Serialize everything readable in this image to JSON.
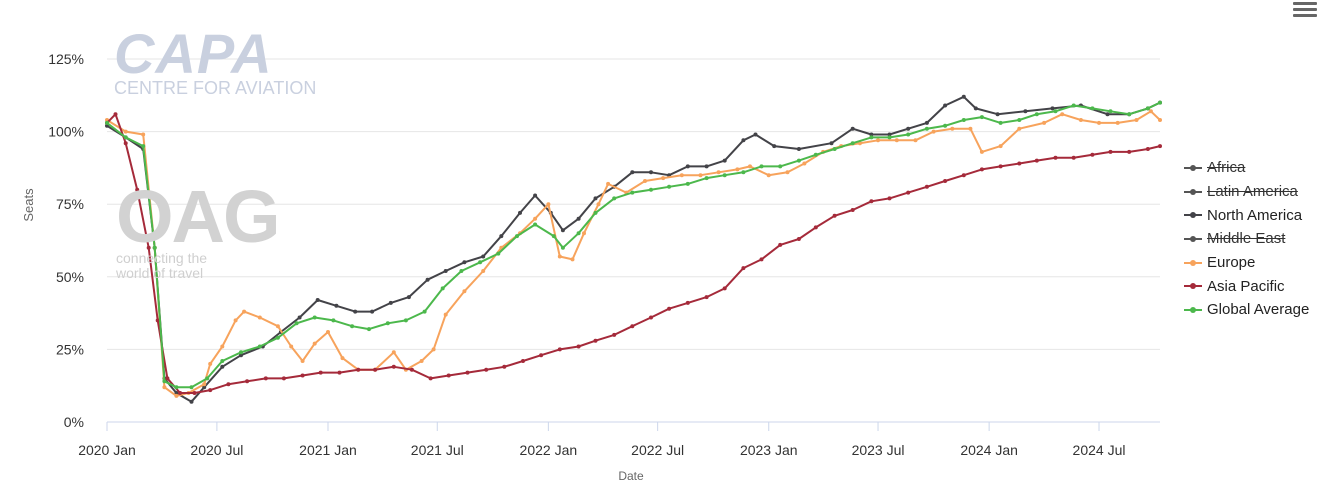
{
  "watermarks": {
    "capa_big": "CAPA",
    "capa_small": "CENTRE FOR AVIATION",
    "oag_big": "OAG",
    "oag_tag1": "connecting the",
    "oag_tag2": "world of travel"
  },
  "menu_icon": "hamburger-menu-icon",
  "chart_data": {
    "type": "line",
    "xlabel": "Date",
    "ylabel": "Seats",
    "x_range": [
      "2020-01-01",
      "2024-10-10"
    ],
    "ylim": [
      0,
      125
    ],
    "y_ticks": [
      0,
      25,
      50,
      75,
      100,
      125
    ],
    "y_tick_labels": [
      "0%",
      "25%",
      "50%",
      "75%",
      "100%",
      "125%"
    ],
    "x_tick_labels": [
      "2020 Jan",
      "2020 Jul",
      "2021 Jan",
      "2021 Jul",
      "2022 Jan",
      "2022 Jul",
      "2023 Jan",
      "2023 Jul",
      "2024 Jan",
      "2024 Jul"
    ],
    "x_tick_dates": [
      "2020-01-01",
      "2020-07-01",
      "2021-01-01",
      "2021-07-01",
      "2022-01-01",
      "2022-07-01",
      "2023-01-01",
      "2023-07-01",
      "2024-01-01",
      "2024-07-01"
    ],
    "grid": "horizontal",
    "legend_position": "right",
    "series": [
      {
        "name": "Africa",
        "color": "#555555",
        "visible": false,
        "points": []
      },
      {
        "name": "Latin America",
        "color": "#555555",
        "visible": false,
        "points": []
      },
      {
        "name": "North America",
        "color": "#434348",
        "visible": true,
        "points": [
          [
            "2020-01-01",
            102
          ],
          [
            "2020-02-01",
            98
          ],
          [
            "2020-03-01",
            94
          ],
          [
            "2020-03-20",
            60
          ],
          [
            "2020-04-05",
            15
          ],
          [
            "2020-04-25",
            10
          ],
          [
            "2020-05-20",
            7
          ],
          [
            "2020-06-10",
            12
          ],
          [
            "2020-07-10",
            19
          ],
          [
            "2020-08-10",
            23
          ],
          [
            "2020-09-15",
            26
          ],
          [
            "2020-10-15",
            31
          ],
          [
            "2020-11-15",
            36
          ],
          [
            "2020-12-15",
            42
          ],
          [
            "2021-01-15",
            40
          ],
          [
            "2021-02-15",
            38
          ],
          [
            "2021-03-15",
            38
          ],
          [
            "2021-04-15",
            41
          ],
          [
            "2021-05-15",
            43
          ],
          [
            "2021-06-15",
            49
          ],
          [
            "2021-07-15",
            52
          ],
          [
            "2021-08-15",
            55
          ],
          [
            "2021-09-15",
            57
          ],
          [
            "2021-10-15",
            64
          ],
          [
            "2021-11-15",
            72
          ],
          [
            "2021-12-10",
            78
          ],
          [
            "2022-01-05",
            72
          ],
          [
            "2022-01-25",
            66
          ],
          [
            "2022-02-20",
            70
          ],
          [
            "2022-03-20",
            77
          ],
          [
            "2022-04-20",
            81
          ],
          [
            "2022-05-20",
            86
          ],
          [
            "2022-06-20",
            86
          ],
          [
            "2022-07-20",
            85
          ],
          [
            "2022-08-20",
            88
          ],
          [
            "2022-09-20",
            88
          ],
          [
            "2022-10-20",
            90
          ],
          [
            "2022-11-20",
            97
          ],
          [
            "2022-12-10",
            99
          ],
          [
            "2023-01-10",
            95
          ],
          [
            "2023-02-20",
            94
          ],
          [
            "2023-04-15",
            96
          ],
          [
            "2023-05-20",
            101
          ],
          [
            "2023-06-20",
            99
          ],
          [
            "2023-07-20",
            99
          ],
          [
            "2023-08-20",
            101
          ],
          [
            "2023-09-20",
            103
          ],
          [
            "2023-10-20",
            109
          ],
          [
            "2023-11-20",
            112
          ],
          [
            "2023-12-10",
            108
          ],
          [
            "2024-01-15",
            106
          ],
          [
            "2024-03-01",
            107
          ],
          [
            "2024-04-15",
            108
          ],
          [
            "2024-06-01",
            109
          ],
          [
            "2024-07-15",
            106
          ],
          [
            "2024-08-20",
            106
          ],
          [
            "2024-09-20",
            108
          ],
          [
            "2024-10-10",
            110
          ]
        ]
      },
      {
        "name": "Middle East",
        "color": "#555555",
        "visible": false,
        "points": []
      },
      {
        "name": "Europe",
        "color": "#f7a35c",
        "visible": true,
        "points": [
          [
            "2020-01-01",
            104
          ],
          [
            "2020-02-01",
            100
          ],
          [
            "2020-03-01",
            99
          ],
          [
            "2020-03-20",
            60
          ],
          [
            "2020-04-05",
            12
          ],
          [
            "2020-04-25",
            9
          ],
          [
            "2020-05-15",
            10
          ],
          [
            "2020-06-10",
            13
          ],
          [
            "2020-06-20",
            20
          ],
          [
            "2020-07-10",
            26
          ],
          [
            "2020-08-01",
            35
          ],
          [
            "2020-08-15",
            38
          ],
          [
            "2020-09-10",
            36
          ],
          [
            "2020-10-10",
            33
          ],
          [
            "2020-11-01",
            26
          ],
          [
            "2020-11-20",
            21
          ],
          [
            "2020-12-10",
            27
          ],
          [
            "2021-01-01",
            31
          ],
          [
            "2021-01-25",
            22
          ],
          [
            "2021-02-20",
            18
          ],
          [
            "2021-03-20",
            18
          ],
          [
            "2021-04-20",
            24
          ],
          [
            "2021-05-10",
            18
          ],
          [
            "2021-06-05",
            21
          ],
          [
            "2021-06-25",
            25
          ],
          [
            "2021-07-15",
            37
          ],
          [
            "2021-08-15",
            45
          ],
          [
            "2021-09-15",
            52
          ],
          [
            "2021-10-15",
            60
          ],
          [
            "2021-11-15",
            65
          ],
          [
            "2021-12-10",
            70
          ],
          [
            "2022-01-01",
            75
          ],
          [
            "2022-01-20",
            57
          ],
          [
            "2022-02-10",
            56
          ],
          [
            "2022-03-01",
            65
          ],
          [
            "2022-03-25",
            75
          ],
          [
            "2022-04-10",
            82
          ],
          [
            "2022-05-10",
            79
          ],
          [
            "2022-06-10",
            83
          ],
          [
            "2022-07-10",
            84
          ],
          [
            "2022-08-10",
            85
          ],
          [
            "2022-09-10",
            85
          ],
          [
            "2022-10-10",
            86
          ],
          [
            "2022-11-10",
            87
          ],
          [
            "2022-12-01",
            88
          ],
          [
            "2023-01-01",
            85
          ],
          [
            "2023-02-01",
            86
          ],
          [
            "2023-03-01",
            89
          ],
          [
            "2023-04-01",
            93
          ],
          [
            "2023-05-01",
            95
          ],
          [
            "2023-06-01",
            96
          ],
          [
            "2023-07-01",
            97
          ],
          [
            "2023-08-01",
            97
          ],
          [
            "2023-09-01",
            97
          ],
          [
            "2023-10-01",
            100
          ],
          [
            "2023-11-01",
            101
          ],
          [
            "2023-12-01",
            101
          ],
          [
            "2023-12-20",
            93
          ],
          [
            "2024-01-20",
            95
          ],
          [
            "2024-02-20",
            101
          ],
          [
            "2024-04-01",
            103
          ],
          [
            "2024-05-01",
            106
          ],
          [
            "2024-06-01",
            104
          ],
          [
            "2024-07-01",
            103
          ],
          [
            "2024-08-01",
            103
          ],
          [
            "2024-09-01",
            104
          ],
          [
            "2024-09-25",
            107
          ],
          [
            "2024-10-10",
            104
          ]
        ]
      },
      {
        "name": "Asia Pacific",
        "color": "#a52a3a",
        "visible": true,
        "points": [
          [
            "2020-01-01",
            103
          ],
          [
            "2020-01-15",
            106
          ],
          [
            "2020-02-01",
            96
          ],
          [
            "2020-02-20",
            80
          ],
          [
            "2020-03-10",
            60
          ],
          [
            "2020-03-25",
            35
          ],
          [
            "2020-04-10",
            15
          ],
          [
            "2020-05-01",
            10
          ],
          [
            "2020-05-25",
            10
          ],
          [
            "2020-06-20",
            11
          ],
          [
            "2020-07-20",
            13
          ],
          [
            "2020-08-20",
            14
          ],
          [
            "2020-09-20",
            15
          ],
          [
            "2020-10-20",
            15
          ],
          [
            "2020-11-20",
            16
          ],
          [
            "2020-12-20",
            17
          ],
          [
            "2021-01-20",
            17
          ],
          [
            "2021-02-20",
            18
          ],
          [
            "2021-03-20",
            18
          ],
          [
            "2021-04-20",
            19
          ],
          [
            "2021-05-20",
            18
          ],
          [
            "2021-06-20",
            15
          ],
          [
            "2021-07-20",
            16
          ],
          [
            "2021-08-20",
            17
          ],
          [
            "2021-09-20",
            18
          ],
          [
            "2021-10-20",
            19
          ],
          [
            "2021-11-20",
            21
          ],
          [
            "2021-12-20",
            23
          ],
          [
            "2022-01-20",
            25
          ],
          [
            "2022-02-20",
            26
          ],
          [
            "2022-03-20",
            28
          ],
          [
            "2022-04-20",
            30
          ],
          [
            "2022-05-20",
            33
          ],
          [
            "2022-06-20",
            36
          ],
          [
            "2022-07-20",
            39
          ],
          [
            "2022-08-20",
            41
          ],
          [
            "2022-09-20",
            43
          ],
          [
            "2022-10-20",
            46
          ],
          [
            "2022-11-20",
            53
          ],
          [
            "2022-12-20",
            56
          ],
          [
            "2023-01-20",
            61
          ],
          [
            "2023-02-20",
            63
          ],
          [
            "2023-03-20",
            67
          ],
          [
            "2023-04-20",
            71
          ],
          [
            "2023-05-20",
            73
          ],
          [
            "2023-06-20",
            76
          ],
          [
            "2023-07-20",
            77
          ],
          [
            "2023-08-20",
            79
          ],
          [
            "2023-09-20",
            81
          ],
          [
            "2023-10-20",
            83
          ],
          [
            "2023-11-20",
            85
          ],
          [
            "2023-12-20",
            87
          ],
          [
            "2024-01-20",
            88
          ],
          [
            "2024-02-20",
            89
          ],
          [
            "2024-03-20",
            90
          ],
          [
            "2024-04-20",
            91
          ],
          [
            "2024-05-20",
            91
          ],
          [
            "2024-06-20",
            92
          ],
          [
            "2024-07-20",
            93
          ],
          [
            "2024-08-20",
            93
          ],
          [
            "2024-09-20",
            94
          ],
          [
            "2024-10-10",
            95
          ]
        ]
      },
      {
        "name": "Global Average",
        "color": "#4cb84c",
        "visible": true,
        "points": [
          [
            "2020-01-01",
            103
          ],
          [
            "2020-02-01",
            98
          ],
          [
            "2020-03-01",
            95
          ],
          [
            "2020-03-20",
            60
          ],
          [
            "2020-04-05",
            14
          ],
          [
            "2020-04-25",
            12
          ],
          [
            "2020-05-20",
            12
          ],
          [
            "2020-06-15",
            15
          ],
          [
            "2020-07-10",
            21
          ],
          [
            "2020-08-10",
            24
          ],
          [
            "2020-09-10",
            26
          ],
          [
            "2020-10-10",
            29
          ],
          [
            "2020-11-10",
            34
          ],
          [
            "2020-12-10",
            36
          ],
          [
            "2021-01-10",
            35
          ],
          [
            "2021-02-10",
            33
          ],
          [
            "2021-03-10",
            32
          ],
          [
            "2021-04-10",
            34
          ],
          [
            "2021-05-10",
            35
          ],
          [
            "2021-06-10",
            38
          ],
          [
            "2021-07-10",
            46
          ],
          [
            "2021-08-10",
            52
          ],
          [
            "2021-09-10",
            55
          ],
          [
            "2021-10-10",
            58
          ],
          [
            "2021-11-10",
            64
          ],
          [
            "2021-12-10",
            68
          ],
          [
            "2022-01-10",
            64
          ],
          [
            "2022-01-25",
            60
          ],
          [
            "2022-02-20",
            65
          ],
          [
            "2022-03-20",
            72
          ],
          [
            "2022-04-20",
            77
          ],
          [
            "2022-05-20",
            79
          ],
          [
            "2022-06-20",
            80
          ],
          [
            "2022-07-20",
            81
          ],
          [
            "2022-08-20",
            82
          ],
          [
            "2022-09-20",
            84
          ],
          [
            "2022-10-20",
            85
          ],
          [
            "2022-11-20",
            86
          ],
          [
            "2022-12-20",
            88
          ],
          [
            "2023-01-20",
            88
          ],
          [
            "2023-02-20",
            90
          ],
          [
            "2023-03-20",
            92
          ],
          [
            "2023-04-20",
            94
          ],
          [
            "2023-05-20",
            96
          ],
          [
            "2023-06-20",
            98
          ],
          [
            "2023-07-20",
            98
          ],
          [
            "2023-08-20",
            99
          ],
          [
            "2023-09-20",
            101
          ],
          [
            "2023-10-20",
            102
          ],
          [
            "2023-11-20",
            104
          ],
          [
            "2023-12-20",
            105
          ],
          [
            "2024-01-20",
            103
          ],
          [
            "2024-02-20",
            104
          ],
          [
            "2024-03-20",
            106
          ],
          [
            "2024-04-20",
            107
          ],
          [
            "2024-05-20",
            109
          ],
          [
            "2024-06-20",
            108
          ],
          [
            "2024-07-20",
            107
          ],
          [
            "2024-08-20",
            106
          ],
          [
            "2024-09-20",
            108
          ],
          [
            "2024-10-10",
            110
          ]
        ]
      }
    ]
  }
}
